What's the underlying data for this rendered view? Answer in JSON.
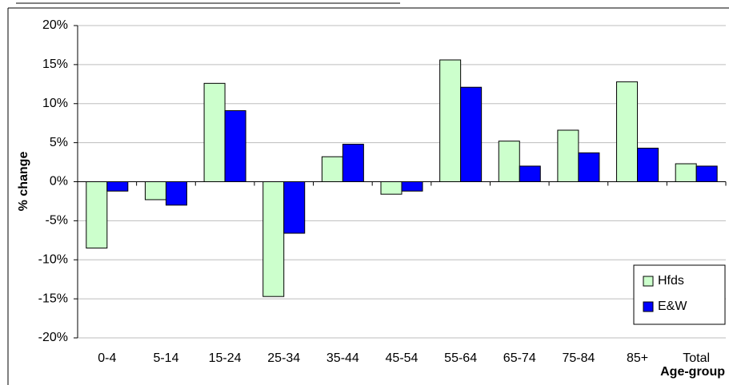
{
  "chart_data": {
    "type": "bar",
    "x_label": "Age-group",
    "y_label": "% change",
    "categories": [
      "0-4",
      "5-14",
      "15-24",
      "25-34",
      "35-44",
      "45-54",
      "55-64",
      "65-74",
      "75-84",
      "85+",
      "Total"
    ],
    "series": [
      {
        "name": "Hfds",
        "color": "#ccffcc",
        "values": [
          -8.5,
          -2.3,
          12.6,
          -14.7,
          3.2,
          -1.6,
          15.6,
          5.2,
          6.6,
          12.8,
          2.3
        ]
      },
      {
        "name": "E&W",
        "color": "#0000ff",
        "values": [
          -1.2,
          -3.0,
          9.1,
          -6.6,
          4.8,
          -1.2,
          12.1,
          2.0,
          3.7,
          4.3,
          2.0
        ]
      }
    ],
    "ylim": [
      -20,
      20
    ],
    "yticks": [
      {
        "value": -20,
        "label": "-20%"
      },
      {
        "value": -15,
        "label": "-15%"
      },
      {
        "value": -10,
        "label": "-10%"
      },
      {
        "value": -5,
        "label": "-5%"
      },
      {
        "value": 0,
        "label": "0%"
      },
      {
        "value": 5,
        "label": "5%"
      },
      {
        "value": 10,
        "label": "10%"
      },
      {
        "value": 15,
        "label": "15%"
      },
      {
        "value": 20,
        "label": "20%"
      }
    ],
    "grid": true,
    "legend": "lower right"
  }
}
